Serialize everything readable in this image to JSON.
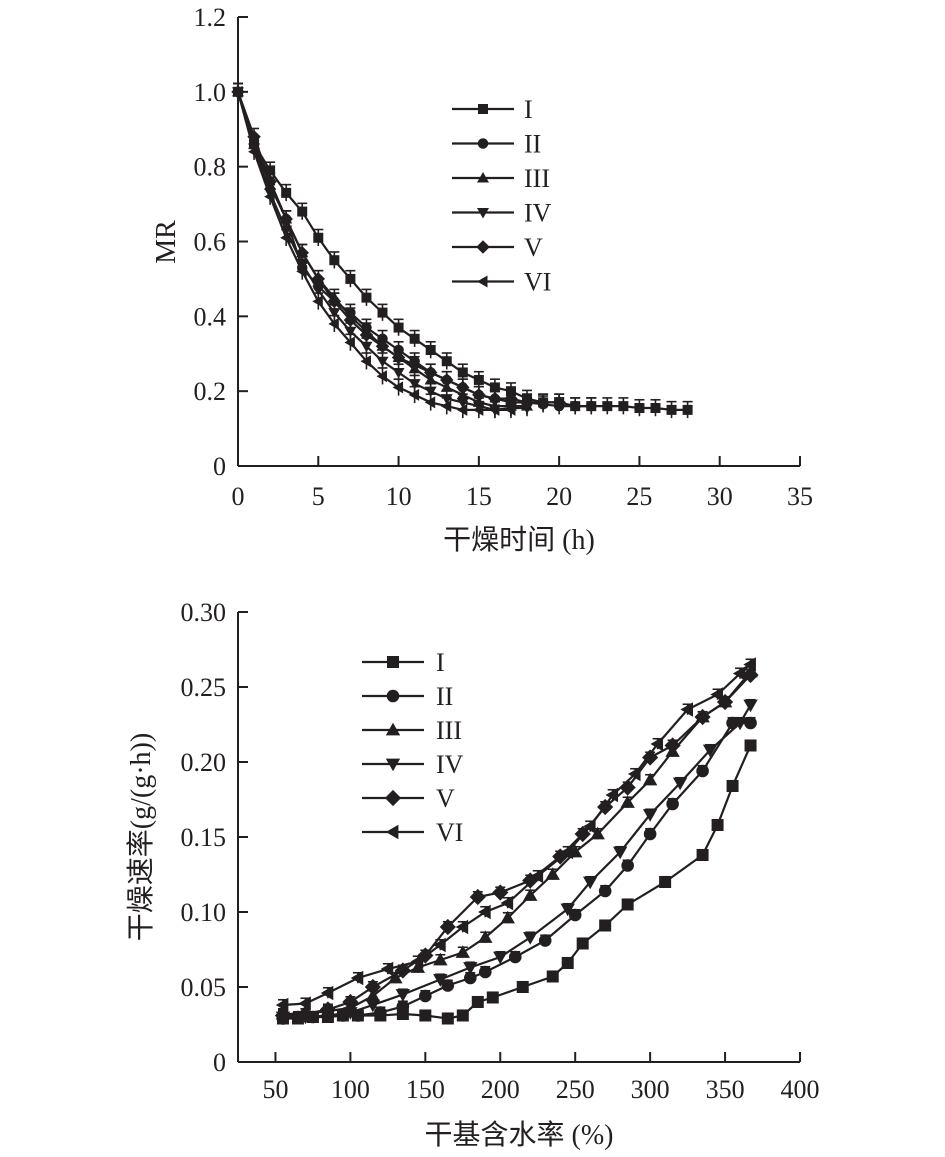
{
  "charts": [
    {
      "type": "line",
      "xlabel": "干燥时间 (h)",
      "ylabel": "MR",
      "xlim": [
        0,
        35
      ],
      "ylim": [
        0,
        1.2
      ],
      "xticks": [
        "0",
        "5",
        "10",
        "15",
        "20",
        "25",
        "30",
        "35"
      ],
      "yticks": [
        "0",
        "0.2",
        "0.4",
        "0.6",
        "0.8",
        "1.0",
        "1.2"
      ],
      "grid": false,
      "error_bars": true,
      "legend_position": "top-right",
      "series": [
        {
          "name": "I",
          "marker": "square",
          "x": [
            0,
            1,
            2,
            3,
            4,
            5,
            6,
            7,
            8,
            9,
            10,
            11,
            12,
            13,
            14,
            15,
            16,
            17,
            18,
            19,
            20,
            21,
            22,
            23,
            24,
            25,
            26,
            27,
            28
          ],
          "y": [
            1.0,
            0.86,
            0.79,
            0.73,
            0.68,
            0.61,
            0.55,
            0.5,
            0.45,
            0.41,
            0.37,
            0.34,
            0.31,
            0.28,
            0.25,
            0.23,
            0.21,
            0.2,
            0.18,
            0.17,
            0.17,
            0.16,
            0.16,
            0.16,
            0.16,
            0.155,
            0.155,
            0.15,
            0.15
          ]
        },
        {
          "name": "II",
          "marker": "circle",
          "x": [
            0,
            1,
            2,
            3,
            4,
            5,
            6,
            7,
            8,
            9,
            10,
            11,
            12,
            13,
            14,
            15,
            16,
            17,
            18,
            19,
            20,
            21,
            22
          ],
          "y": [
            1.0,
            0.86,
            0.76,
            0.66,
            0.53,
            0.48,
            0.44,
            0.41,
            0.37,
            0.34,
            0.31,
            0.28,
            0.25,
            0.23,
            0.21,
            0.19,
            0.18,
            0.17,
            0.17,
            0.165,
            0.16,
            0.16,
            0.16
          ]
        },
        {
          "name": "III",
          "marker": "triangle-up",
          "x": [
            0,
            1,
            2,
            3,
            4,
            5,
            6,
            7,
            8,
            9,
            10,
            11,
            12,
            13,
            14,
            15,
            16,
            17,
            18
          ],
          "y": [
            1.0,
            0.86,
            0.75,
            0.66,
            0.57,
            0.5,
            0.45,
            0.4,
            0.36,
            0.32,
            0.29,
            0.26,
            0.23,
            0.21,
            0.19,
            0.17,
            0.16,
            0.16,
            0.16
          ]
        },
        {
          "name": "IV",
          "marker": "triangle-down",
          "x": [
            0,
            1,
            2,
            3,
            4,
            5,
            6,
            7,
            8,
            9,
            10,
            11,
            12,
            13,
            14,
            15,
            16,
            17,
            18
          ],
          "y": [
            1.0,
            0.85,
            0.73,
            0.63,
            0.54,
            0.47,
            0.41,
            0.36,
            0.32,
            0.28,
            0.25,
            0.22,
            0.2,
            0.18,
            0.17,
            0.16,
            0.15,
            0.155,
            0.155
          ]
        },
        {
          "name": "V",
          "marker": "diamond",
          "x": [
            0,
            1,
            2,
            3,
            4,
            5,
            6,
            7,
            8,
            9,
            10,
            11,
            12,
            13,
            14,
            15,
            16,
            17,
            18,
            19,
            20
          ],
          "y": [
            1.0,
            0.88,
            0.76,
            0.66,
            0.57,
            0.5,
            0.44,
            0.39,
            0.35,
            0.32,
            0.29,
            0.27,
            0.25,
            0.23,
            0.21,
            0.19,
            0.18,
            0.18,
            0.17,
            0.17,
            0.17
          ]
        },
        {
          "name": "VI",
          "marker": "triangle-left",
          "x": [
            0,
            1,
            2,
            3,
            4,
            5,
            6,
            7,
            8,
            9,
            10,
            11,
            12,
            13,
            14,
            15,
            16,
            17
          ],
          "y": [
            1.0,
            0.84,
            0.72,
            0.61,
            0.52,
            0.44,
            0.38,
            0.33,
            0.28,
            0.24,
            0.21,
            0.19,
            0.17,
            0.16,
            0.15,
            0.15,
            0.15,
            0.15
          ]
        }
      ]
    },
    {
      "type": "line",
      "xlabel": "干基含水率 (%)",
      "ylabel": "干燥速率(g/(g·h))",
      "xlim": [
        25,
        400
      ],
      "ylim": [
        0,
        0.3
      ],
      "xticks": [
        "50",
        "100",
        "150",
        "200",
        "250",
        "300",
        "350",
        "400"
      ],
      "yticks": [
        "0",
        "0.05",
        "0.10",
        "0.15",
        "0.20",
        "0.25",
        "0.30"
      ],
      "grid": false,
      "error_bars": true,
      "legend_position": "top-left",
      "series": [
        {
          "name": "I",
          "marker": "square",
          "x": [
            55,
            65,
            75,
            85,
            95,
            105,
            120,
            135,
            150,
            165,
            175,
            185,
            195,
            215,
            235,
            245,
            255,
            270,
            285,
            310,
            335,
            345,
            355,
            367
          ],
          "y": [
            0.029,
            0.029,
            0.03,
            0.03,
            0.031,
            0.031,
            0.031,
            0.032,
            0.031,
            0.029,
            0.031,
            0.04,
            0.043,
            0.05,
            0.057,
            0.066,
            0.079,
            0.091,
            0.105,
            0.12,
            0.138,
            0.158,
            0.184,
            0.211
          ]
        },
        {
          "name": "II",
          "marker": "circle",
          "x": [
            55,
            65,
            75,
            85,
            95,
            105,
            120,
            135,
            150,
            165,
            180,
            190,
            210,
            230,
            250,
            270,
            285,
            300,
            315,
            335,
            355,
            367
          ],
          "y": [
            0.029,
            0.03,
            0.03,
            0.031,
            0.031,
            0.031,
            0.033,
            0.037,
            0.044,
            0.051,
            0.056,
            0.06,
            0.07,
            0.081,
            0.098,
            0.114,
            0.131,
            0.152,
            0.172,
            0.194,
            0.226,
            0.226
          ]
        },
        {
          "name": "III",
          "marker": "triangle-up",
          "x": [
            55,
            70,
            85,
            100,
            115,
            130,
            145,
            160,
            175,
            190,
            205,
            220,
            235,
            250,
            265,
            285,
            300,
            315,
            335,
            350,
            367
          ],
          "y": [
            0.032,
            0.032,
            0.034,
            0.036,
            0.044,
            0.056,
            0.063,
            0.068,
            0.073,
            0.083,
            0.096,
            0.111,
            0.125,
            0.14,
            0.152,
            0.173,
            0.188,
            0.207,
            0.23,
            0.24,
            0.26
          ]
        },
        {
          "name": "IV",
          "marker": "triangle-down",
          "x": [
            55,
            70,
            85,
            100,
            115,
            135,
            160,
            180,
            200,
            220,
            245,
            260,
            280,
            300,
            320,
            340,
            360,
            367
          ],
          "y": [
            0.03,
            0.03,
            0.031,
            0.033,
            0.038,
            0.045,
            0.055,
            0.063,
            0.07,
            0.083,
            0.102,
            0.12,
            0.14,
            0.165,
            0.186,
            0.208,
            0.226,
            0.238
          ]
        },
        {
          "name": "V",
          "marker": "diamond",
          "x": [
            55,
            70,
            85,
            100,
            115,
            135,
            150,
            165,
            185,
            200,
            220,
            240,
            255,
            270,
            285,
            300,
            315,
            335,
            350,
            367
          ],
          "y": [
            0.031,
            0.032,
            0.035,
            0.04,
            0.05,
            0.061,
            0.071,
            0.09,
            0.11,
            0.113,
            0.121,
            0.137,
            0.152,
            0.17,
            0.183,
            0.203,
            0.211,
            0.23,
            0.24,
            0.258
          ]
        },
        {
          "name": "VI",
          "marker": "triangle-left",
          "x": [
            55,
            70,
            85,
            105,
            125,
            145,
            160,
            175,
            190,
            205,
            225,
            245,
            260,
            275,
            290,
            305,
            325,
            345,
            360,
            367
          ],
          "y": [
            0.038,
            0.039,
            0.046,
            0.056,
            0.062,
            0.067,
            0.078,
            0.09,
            0.1,
            0.106,
            0.124,
            0.14,
            0.157,
            0.178,
            0.192,
            0.212,
            0.235,
            0.245,
            0.259,
            0.265
          ]
        }
      ]
    }
  ]
}
